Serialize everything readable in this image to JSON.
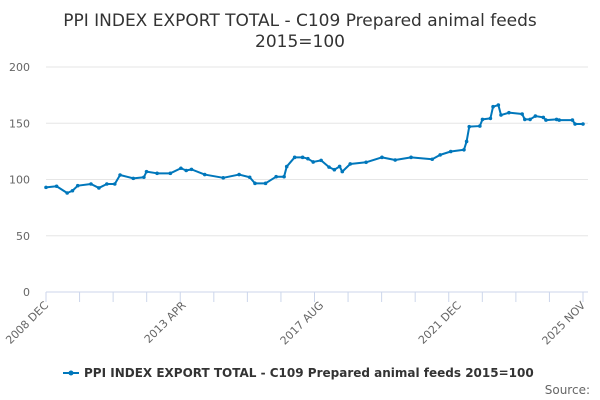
{
  "chart_data": {
    "type": "line",
    "title_lines": [
      "PPI INDEX EXPORT TOTAL - C109 Prepared animal feeds",
      "2015=100"
    ],
    "xlabel": "",
    "ylabel": "",
    "ylim": [
      0,
      200
    ],
    "yticks": [
      0,
      50,
      100,
      150,
      200
    ],
    "xlim": [
      "2008-12",
      "2025-11"
    ],
    "xtick_labels": [
      "2008 DEC",
      "2013 APR",
      "2017 AUG",
      "2021 DEC",
      "2025 NOV"
    ],
    "xtick_dates": [
      "2008-12",
      "2013-04",
      "2017-08",
      "2021-12",
      "2025-11"
    ],
    "grid": true,
    "legend_position": "bottom",
    "color": "#0077bb",
    "series": [
      {
        "name": "PPI INDEX EXPORT TOTAL - C109 Prepared animal feeds 2015=100",
        "x": [
          "2008-12",
          "2009-04",
          "2009-08",
          "2009-10",
          "2009-12",
          "2010-05",
          "2010-08",
          "2010-11",
          "2011-02",
          "2011-04",
          "2011-09",
          "2012-01",
          "2012-02",
          "2012-06",
          "2012-11",
          "2013-03",
          "2013-05",
          "2013-07",
          "2013-12",
          "2014-07",
          "2015-01",
          "2015-05",
          "2015-07",
          "2015-11",
          "2016-03",
          "2016-06",
          "2016-07",
          "2016-10",
          "2017-01",
          "2017-03",
          "2017-05",
          "2017-08",
          "2017-11",
          "2018-01",
          "2018-03",
          "2018-04",
          "2018-07",
          "2019-01",
          "2019-07",
          "2019-12",
          "2020-06",
          "2021-02",
          "2021-05",
          "2021-09",
          "2022-02",
          "2022-03",
          "2022-04",
          "2022-08",
          "2022-09",
          "2022-12",
          "2023-01",
          "2023-03",
          "2023-04",
          "2023-07",
          "2023-12",
          "2024-01",
          "2024-03",
          "2024-05",
          "2024-08",
          "2024-09",
          "2025-01",
          "2025-02",
          "2025-07",
          "2025-08",
          "2025-11"
        ],
        "values": [
          93,
          94,
          88,
          90,
          94.5,
          96,
          92.5,
          96,
          96,
          104,
          101,
          102,
          107,
          105.5,
          105.5,
          110,
          108,
          109,
          104.4,
          101.5,
          104.4,
          102,
          96.6,
          96.6,
          102.5,
          102.5,
          111.5,
          119.7,
          119.7,
          118.5,
          115.6,
          117,
          111,
          108.7,
          111.6,
          107,
          113.8,
          115.3,
          119.7,
          117.3,
          119.7,
          118,
          121.9,
          124.9,
          126.4,
          133.8,
          147,
          147.5,
          153.4,
          154.3,
          164.7,
          166.2,
          157.3,
          159.4,
          158.2,
          153.4,
          153.4,
          156.4,
          155.2,
          152.8,
          153.4,
          152.8,
          152.8,
          149.3,
          149.3
        ]
      }
    ]
  },
  "credits": {
    "source_label": "Source:"
  }
}
